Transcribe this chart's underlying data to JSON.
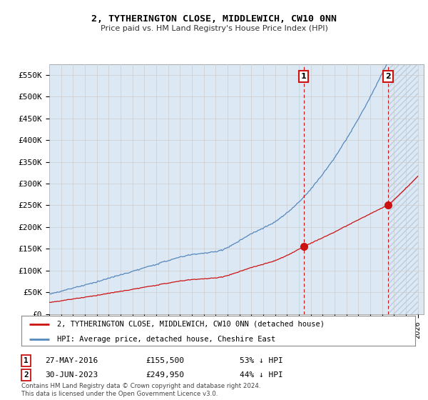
{
  "title": "2, TYTHERINGTON CLOSE, MIDDLEWICH, CW10 0NN",
  "subtitle": "Price paid vs. HM Land Registry's House Price Index (HPI)",
  "ylabel_ticks": [
    "£0",
    "£50K",
    "£100K",
    "£150K",
    "£200K",
    "£250K",
    "£300K",
    "£350K",
    "£400K",
    "£450K",
    "£500K",
    "£550K"
  ],
  "ytick_values": [
    0,
    50000,
    100000,
    150000,
    200000,
    250000,
    300000,
    350000,
    400000,
    450000,
    500000,
    550000
  ],
  "ylim": [
    0,
    575000
  ],
  "xlim_start": 1995,
  "xlim_end": 2026.5,
  "hpi_color": "#5588bb",
  "price_color": "#cc1111",
  "sale1_date": "27-MAY-2016",
  "sale1_price": 155500,
  "sale1_year": 2016.4,
  "sale1_label": "1",
  "sale2_date": "30-JUN-2023",
  "sale2_price": 249950,
  "sale2_year": 2023.5,
  "sale2_label": "2",
  "sale1_pct": "53% ↓ HPI",
  "sale2_pct": "44% ↓ HPI",
  "legend_property": "2, TYTHERINGTON CLOSE, MIDDLEWICH, CW10 0NN (detached house)",
  "legend_hpi": "HPI: Average price, detached house, Cheshire East",
  "footnote": "Contains HM Land Registry data © Crown copyright and database right 2024.\nThis data is licensed under the Open Government Licence v3.0.",
  "background_color": "#ffffff",
  "grid_color": "#cccccc",
  "plot_bg": "#dde8f5"
}
